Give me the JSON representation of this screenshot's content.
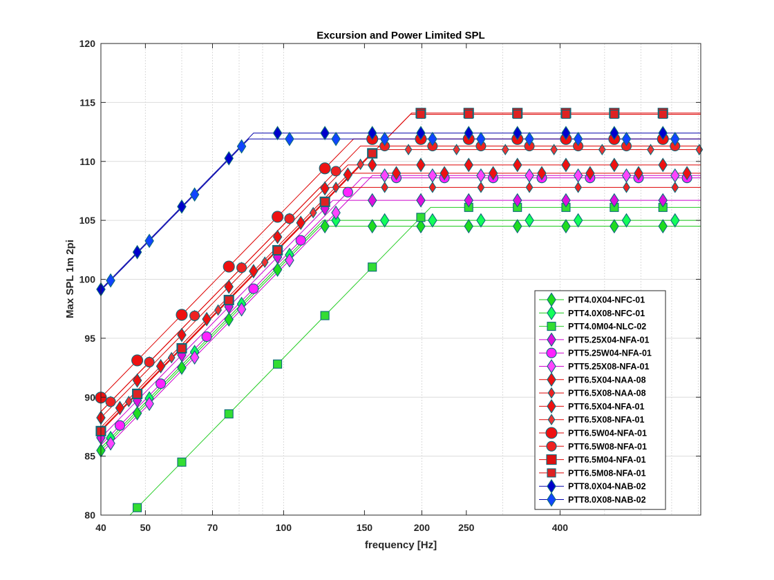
{
  "chart_data": {
    "type": "line",
    "title": "Excursion and Power Limited SPL",
    "xlabel": "frequency [Hz]",
    "ylabel": "Max SPL 1m 2pi",
    "xscale": "log",
    "xlim": [
      40,
      810
    ],
    "ylim": [
      80,
      120
    ],
    "xticks": [
      40,
      50,
      70,
      100,
      150,
      200,
      250,
      400
    ],
    "yticks": [
      80,
      85,
      90,
      95,
      100,
      105,
      110,
      115,
      120
    ],
    "grid": true,
    "legend_position": "lower-right",
    "marker_x": [
      40,
      42,
      44,
      46,
      48,
      51,
      54,
      57,
      60,
      64,
      68,
      72,
      76,
      81,
      86,
      91,
      97,
      103,
      109,
      116,
      123,
      130,
      138,
      147,
      156,
      166,
      176,
      187,
      199,
      211,
      224,
      238,
      253,
      269,
      286,
      304,
      323,
      343,
      365,
      388,
      412,
      438,
      465,
      494,
      525,
      558,
      593,
      630,
      670,
      712,
      756,
      804
    ],
    "series": [
      {
        "name": "PTT4.0X04-NFC-01",
        "color": "#1fdc1f",
        "line_color": "#12c812",
        "marker": "diamond",
        "marker_size": 9,
        "knee": 120,
        "plateau": 104.5,
        "offset": 0
      },
      {
        "name": "PTT4.0X08-NFC-01",
        "color": "#12ff5a",
        "line_color": "#12c812",
        "marker": "diamond",
        "marker_size": 9,
        "knee": 122,
        "plateau": 105.0,
        "offset": 1
      },
      {
        "name": "PTT4.0M04-NLC-02",
        "color": "#33dd33",
        "line_color": "#22cc22",
        "marker": "square",
        "marker_size": 6,
        "knee": 209,
        "plateau": 106.1,
        "offset": 0
      },
      {
        "name": "PTT5.25X04-NFA-01",
        "color": "#dd11dd",
        "line_color": "#cc00cc",
        "marker": "diamond",
        "marker_size": 9,
        "knee": 128,
        "plateau": 106.7,
        "offset": 0
      },
      {
        "name": "PTT5.25W04-NFA-01",
        "color": "#ff22ff",
        "line_color": "#cc00cc",
        "marker": "circle",
        "marker_size": 7,
        "knee": 148,
        "plateau": 108.6,
        "offset": 2
      },
      {
        "name": "PTT5.25X08-NFA-01",
        "color": "#ff44ff",
        "line_color": "#cc00cc",
        "marker": "diamond",
        "marker_size": 9,
        "knee": 156,
        "plateau": 108.8,
        "offset": 1
      },
      {
        "name": "PTT6.5X04-NAA-08",
        "color": "#ee1111",
        "line_color": "#dd0000",
        "marker": "diamond",
        "marker_size": 9,
        "knee": 138,
        "plateau": 109.7,
        "offset": 0
      },
      {
        "name": "PTT6.5X08-NAA-08",
        "color": "#ee2222",
        "line_color": "#dd0000",
        "marker": "diamond",
        "marker_size": 7,
        "knee": 120,
        "plateau": 107.8,
        "offset": 1
      },
      {
        "name": "PTT6.5X04-NFA-01",
        "color": "#ee1111",
        "line_color": "#dd0000",
        "marker": "diamond",
        "marker_size": 9,
        "knee": 139,
        "plateau": 109.0,
        "offset": 2
      },
      {
        "name": "PTT6.5X08-NFA-01",
        "color": "#ee3333",
        "line_color": "#dd0000",
        "marker": "diamond",
        "marker_size": 7,
        "knee": 158,
        "plateau": 111.0,
        "offset": 3
      },
      {
        "name": "PTT6.5W04-NFA-01",
        "color": "#ee1111",
        "line_color": "#dd0000",
        "marker": "circle",
        "marker_size": 8,
        "knee": 142,
        "plateau": 111.9,
        "offset": 0
      },
      {
        "name": "PTT6.5W08-NFA-01",
        "color": "#ee2222",
        "line_color": "#dd0000",
        "marker": "circle",
        "marker_size": 7,
        "knee": 147,
        "plateau": 111.3,
        "offset": 1
      },
      {
        "name": "PTT6.5M04-NFA-01",
        "color": "#dd1111",
        "line_color": "#dd0000",
        "marker": "square",
        "marker_size": 7,
        "knee": 190,
        "plateau": 114.1,
        "offset": 0
      },
      {
        "name": "PTT6.5M08-NFA-01",
        "color": "#dd2222",
        "line_color": "#dd0000",
        "marker": "square",
        "marker_size": 6,
        "knee": 189,
        "plateau": 114.0,
        "offset": 0
      },
      {
        "name": "PTT8.0X04-NAB-02",
        "color": "#0000cc",
        "line_color": "#0000aa",
        "marker": "diamond",
        "marker_size": 9,
        "knee": 86,
        "plateau": 112.4,
        "offset": 0
      },
      {
        "name": "PTT8.0X08-NAB-02",
        "color": "#1144ff",
        "line_color": "#0000aa",
        "marker": "diamond",
        "marker_size": 9,
        "knee": 84,
        "plateau": 111.9,
        "offset": 1
      }
    ]
  }
}
